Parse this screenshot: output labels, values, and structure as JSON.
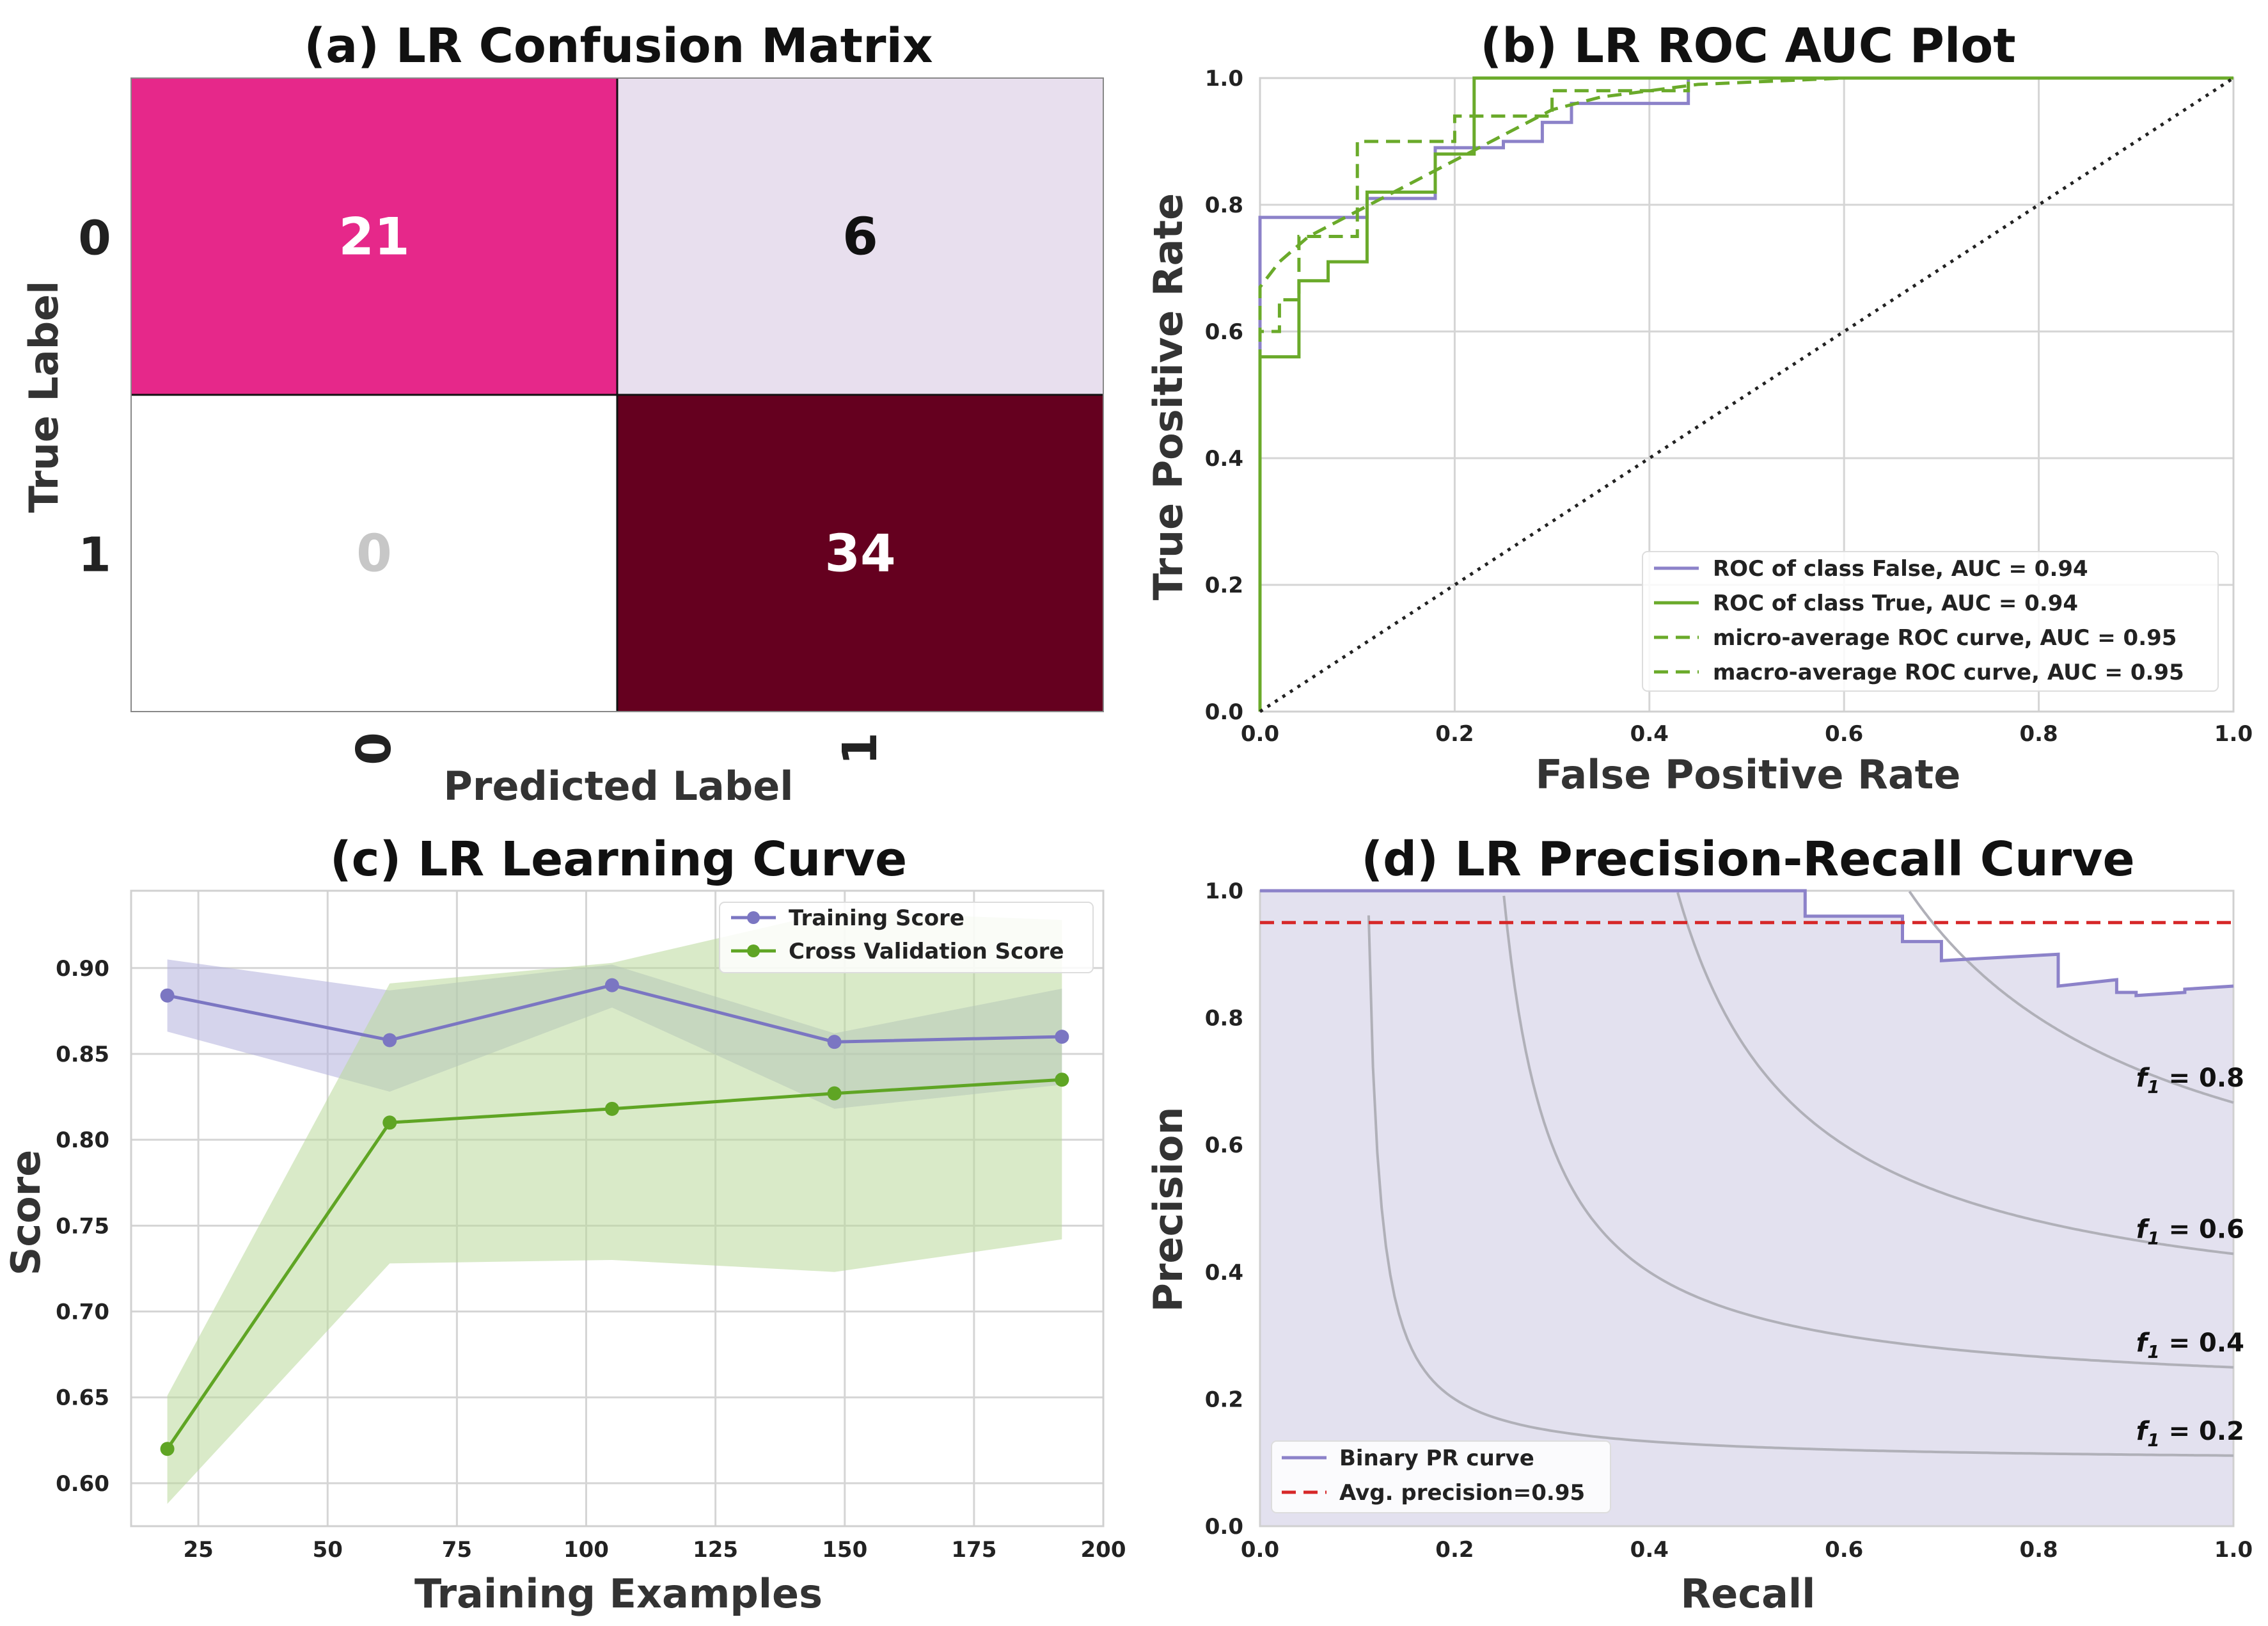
{
  "chart_data": [
    {
      "panel": "a",
      "type": "heatmap",
      "title": "(a) LR Confusion Matrix",
      "xlabel": "Predicted Label",
      "ylabel": "True Label",
      "x_ticks": [
        "0",
        "1"
      ],
      "y_ticks": [
        "0",
        "1"
      ],
      "cells": [
        {
          "row": 0,
          "col": 0,
          "value": 21,
          "color": "#e6288a",
          "text_color": "#ffffff"
        },
        {
          "row": 0,
          "col": 1,
          "value": 6,
          "color": "#e8dfee",
          "text_color": "#111111"
        },
        {
          "row": 1,
          "col": 0,
          "value": 0,
          "color": "#ffffff",
          "text_color": "#c7c7c7"
        },
        {
          "row": 1,
          "col": 1,
          "value": 34,
          "color": "#65001f",
          "text_color": "#ffffff"
        }
      ]
    },
    {
      "panel": "b",
      "type": "line",
      "title": "(b) LR ROC AUC Plot",
      "xlabel": "False Positive Rate",
      "ylabel": "True Positive Rate",
      "xlim": [
        0,
        1
      ],
      "ylim": [
        0,
        1
      ],
      "x_ticks": [
        "0.0",
        "0.2",
        "0.4",
        "0.6",
        "0.8",
        "1.0"
      ],
      "y_ticks": [
        "0.0",
        "0.2",
        "0.4",
        "0.6",
        "0.8",
        "1.0"
      ],
      "legend_position": "bottom-right",
      "series": [
        {
          "name": "ROC of class False, AUC = 0.94",
          "color": "#8c82c9",
          "dash": "solid",
          "x": [
            0,
            0,
            0.11,
            0.11,
            0.18,
            0.18,
            0.25,
            0.25,
            0.29,
            0.29,
            0.32,
            0.32,
            0.44,
            0.44,
            1.0
          ],
          "y": [
            0,
            0.78,
            0.78,
            0.81,
            0.81,
            0.89,
            0.89,
            0.9,
            0.9,
            0.93,
            0.93,
            0.96,
            0.96,
            1.0,
            1.0
          ]
        },
        {
          "name": "ROC of class True, AUC = 0.94",
          "color": "#6aaa2a",
          "dash": "solid",
          "x": [
            0,
            0,
            0.04,
            0.04,
            0.07,
            0.07,
            0.11,
            0.11,
            0.18,
            0.18,
            0.22,
            0.22,
            1.0
          ],
          "y": [
            0,
            0.56,
            0.56,
            0.68,
            0.68,
            0.71,
            0.71,
            0.82,
            0.82,
            0.88,
            0.88,
            1.0,
            1.0
          ]
        },
        {
          "name": "micro-average ROC curve, AUC = 0.95",
          "color": "#6aaa2a",
          "dash": "dashed",
          "x": [
            0,
            0,
            0.02,
            0.05,
            0.1,
            0.15,
            0.2,
            0.25,
            0.3,
            0.35,
            0.45,
            0.6,
            0.8,
            1.0
          ],
          "y": [
            0,
            0.67,
            0.71,
            0.75,
            0.79,
            0.83,
            0.87,
            0.91,
            0.95,
            0.97,
            0.99,
            1.0,
            1.0,
            1.0
          ]
        },
        {
          "name": "macro-average ROC curve, AUC = 0.95",
          "color": "#6aaa2a",
          "dash": "dashed",
          "x": [
            0,
            0,
            0.02,
            0.02,
            0.04,
            0.04,
            0.1,
            0.1,
            0.2,
            0.2,
            0.3,
            0.3,
            0.44,
            0.44,
            1.0
          ],
          "y": [
            0,
            0.6,
            0.6,
            0.65,
            0.65,
            0.75,
            0.75,
            0.9,
            0.9,
            0.94,
            0.94,
            0.98,
            0.98,
            1.0,
            1.0
          ]
        },
        {
          "name": "",
          "color": "#222222",
          "dash": "dotted",
          "x": [
            0,
            1
          ],
          "y": [
            0,
            1
          ]
        }
      ]
    },
    {
      "panel": "c",
      "type": "line",
      "title": "(c) LR Learning Curve",
      "xlabel": "Training Examples",
      "ylabel": "Score",
      "xlim": [
        12,
        200
      ],
      "ylim": [
        0.575,
        0.945
      ],
      "x_ticks": [
        25,
        50,
        75,
        100,
        125,
        150,
        175,
        200
      ],
      "y_ticks": [
        0.6,
        0.65,
        0.7,
        0.75,
        0.8,
        0.85,
        0.9
      ],
      "y_tick_labels": [
        "0.60",
        "0.65",
        "0.70",
        "0.75",
        "0.80",
        "0.85",
        "0.90"
      ],
      "legend_position": "top-right",
      "series": [
        {
          "name": "Training Score",
          "color": "#7b76c2",
          "band_color": "#b3b0dc",
          "x": [
            19,
            62,
            105,
            148,
            192
          ],
          "y": [
            0.884,
            0.858,
            0.89,
            0.857,
            0.86
          ],
          "upper": [
            0.905,
            0.887,
            0.902,
            0.862,
            0.888
          ],
          "lower": [
            0.863,
            0.828,
            0.877,
            0.818,
            0.832
          ]
        },
        {
          "name": "Cross Validation Score",
          "color": "#5fa524",
          "band_color": "#b9d99a",
          "x": [
            19,
            62,
            105,
            148,
            192
          ],
          "y": [
            0.62,
            0.81,
            0.818,
            0.827,
            0.835
          ],
          "upper": [
            0.651,
            0.891,
            0.903,
            0.933,
            0.928
          ],
          "lower": [
            0.588,
            0.728,
            0.73,
            0.723,
            0.742
          ]
        }
      ]
    },
    {
      "panel": "d",
      "type": "line",
      "title": "(d) LR Precision-Recall Curve",
      "xlabel": "Recall",
      "ylabel": "Precision",
      "xlim": [
        0,
        1
      ],
      "ylim": [
        0,
        1
      ],
      "x_ticks": [
        "0.0",
        "0.2",
        "0.4",
        "0.6",
        "0.8",
        "1.0"
      ],
      "y_ticks": [
        "0.0",
        "0.2",
        "0.4",
        "0.6",
        "0.8",
        "1.0"
      ],
      "legend_position": "bottom-left",
      "iso_f1": [
        {
          "f1": 0.2,
          "label_main": "f",
          "label_sub": "1",
          "label_rest": " = 0.2"
        },
        {
          "f1": 0.4,
          "label_main": "f",
          "label_sub": "1",
          "label_rest": " = 0.4"
        },
        {
          "f1": 0.6,
          "label_main": "f",
          "label_sub": "1",
          "label_rest": " = 0.6"
        },
        {
          "f1": 0.8,
          "label_main": "f",
          "label_sub": "1",
          "label_rest": " = 0.8"
        }
      ],
      "series": [
        {
          "name": "Binary PR curve",
          "color": "#8c82c9",
          "fill": "#e3e1ef",
          "dash": "solid",
          "x": [
            0,
            0.56,
            0.56,
            0.66,
            0.66,
            0.7,
            0.7,
            0.82,
            0.82,
            0.88,
            0.88,
            0.9,
            0.9,
            0.95,
            0.95,
            1.0,
            1.0
          ],
          "y": [
            1.0,
            1.0,
            0.96,
            0.96,
            0.92,
            0.92,
            0.89,
            0.9,
            0.85,
            0.86,
            0.84,
            0.84,
            0.835,
            0.84,
            0.845,
            0.85,
            0.85
          ]
        },
        {
          "name": "Avg. precision=0.95",
          "color": "#d62728",
          "dash": "dashed",
          "x": [
            0,
            1
          ],
          "y": [
            0.95,
            0.95
          ]
        }
      ]
    }
  ]
}
